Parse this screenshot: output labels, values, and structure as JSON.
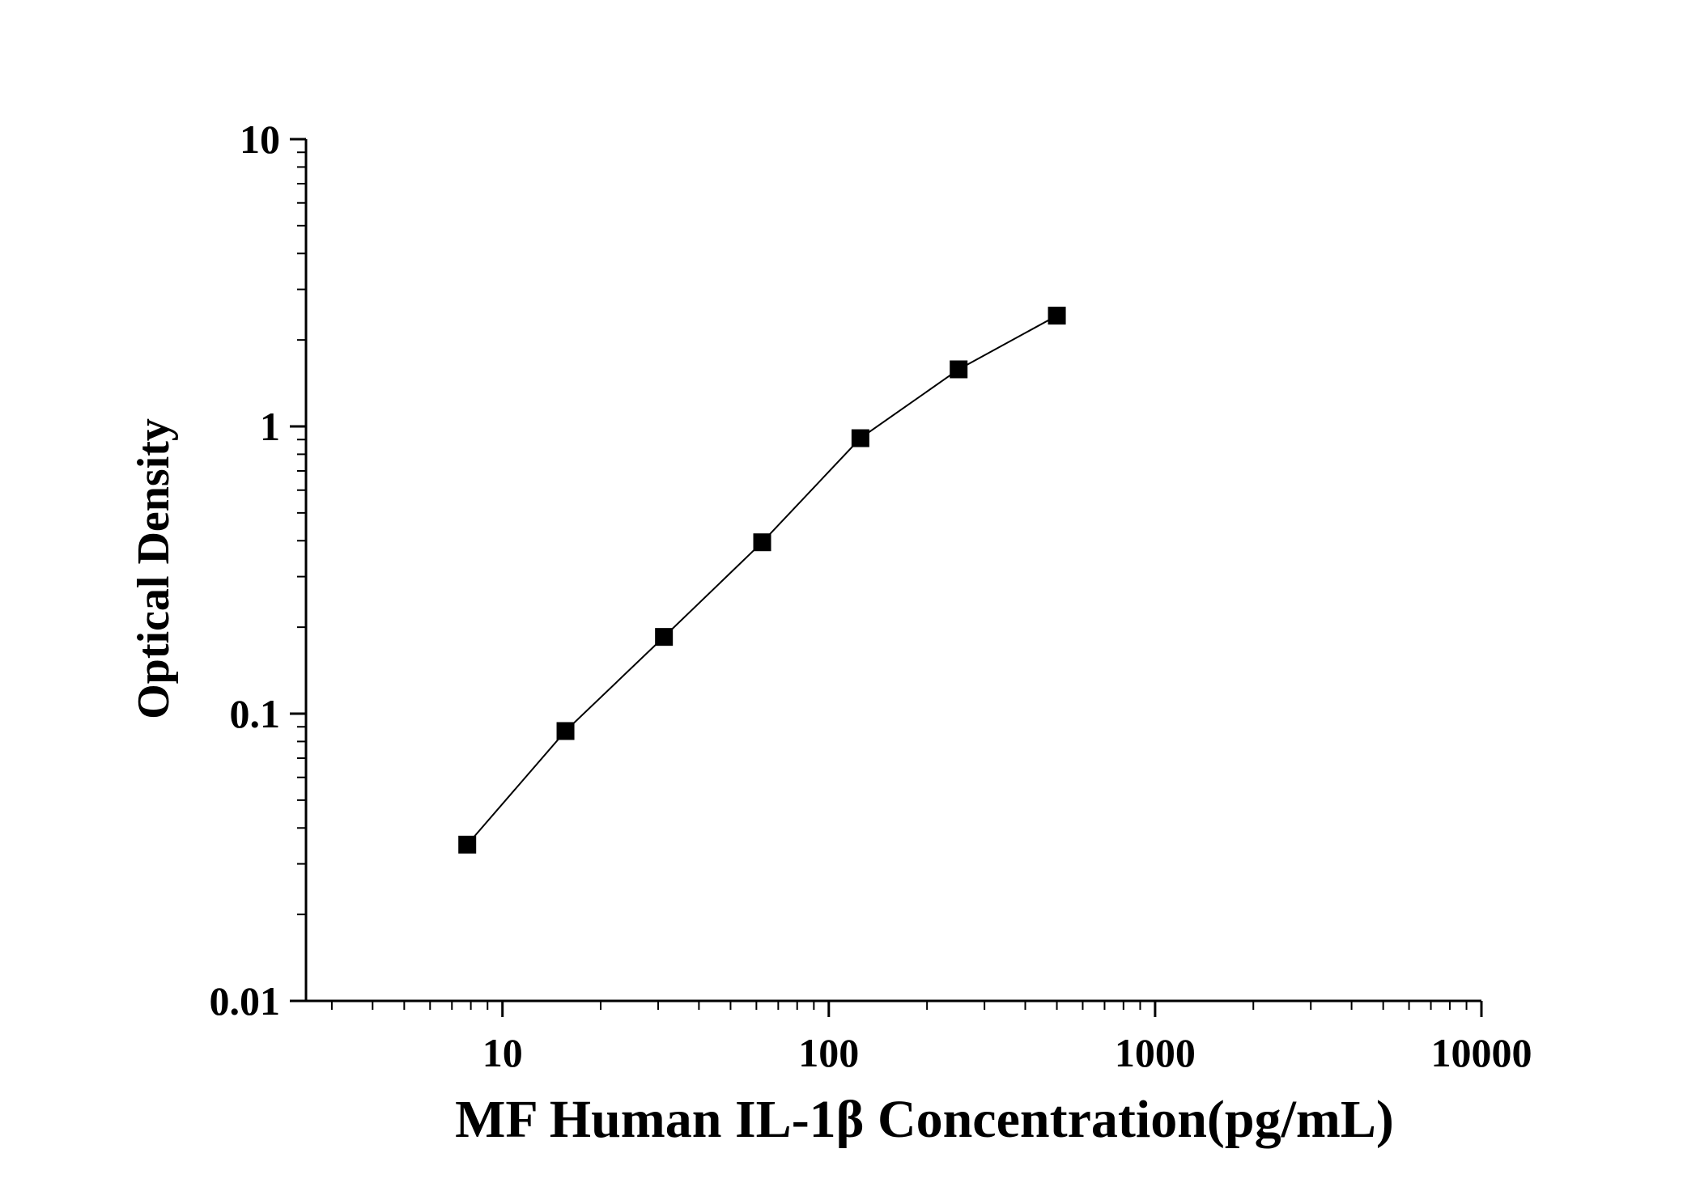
{
  "chart_data": {
    "type": "scatter",
    "title": "",
    "xlabel": "MF Human IL-1β Concentration(pg/mL)",
    "ylabel": "Optical Density",
    "x_scale": "log",
    "y_scale": "log",
    "xlim": [
      2.5,
      10000
    ],
    "ylim": [
      0.01,
      10
    ],
    "x_ticks": [
      {
        "value": 10,
        "label": "10"
      },
      {
        "value": 100,
        "label": "100"
      },
      {
        "value": 1000,
        "label": "1000"
      },
      {
        "value": 10000,
        "label": "10000"
      }
    ],
    "y_ticks": [
      {
        "value": 0.01,
        "label": "0.01"
      },
      {
        "value": 0.1,
        "label": "0.1"
      },
      {
        "value": 1,
        "label": "1"
      },
      {
        "value": 10,
        "label": "10"
      }
    ],
    "grid": false,
    "legend": "none",
    "series": [
      {
        "x": [
          7.8,
          15.6,
          31.25,
          62.5,
          125,
          250,
          500
        ],
        "y": [
          0.035,
          0.087,
          0.185,
          0.395,
          0.91,
          1.58,
          2.43
        ],
        "marker": "square",
        "connected": true,
        "color": "#000000"
      }
    ]
  }
}
